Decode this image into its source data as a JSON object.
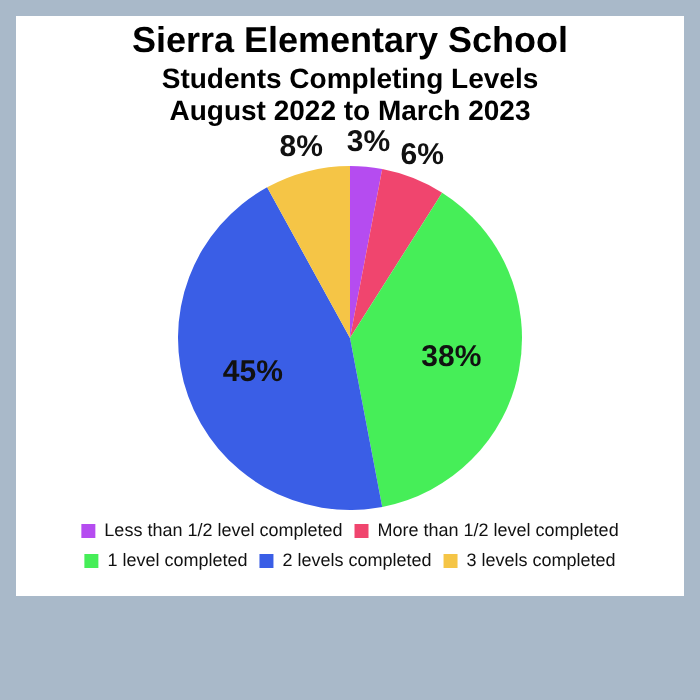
{
  "chart_data": {
    "type": "pie",
    "title": "Sierra Elementary School",
    "subtitle": "Students Completing Levels August 2022 to March 2023",
    "categories": [
      "Less than 1/2 level completed",
      "More than 1/2 level completed",
      "1 level completed",
      "2 levels completed",
      "3 levels completed"
    ],
    "values": [
      3,
      6,
      38,
      45,
      8
    ],
    "value_labels": [
      "3%",
      "6%",
      "38%",
      "45%",
      "8%"
    ],
    "colors": [
      "#b54cf0",
      "#f0456e",
      "#46ee58",
      "#3a5ee6",
      "#f5c546"
    ],
    "legend": "bottom"
  }
}
